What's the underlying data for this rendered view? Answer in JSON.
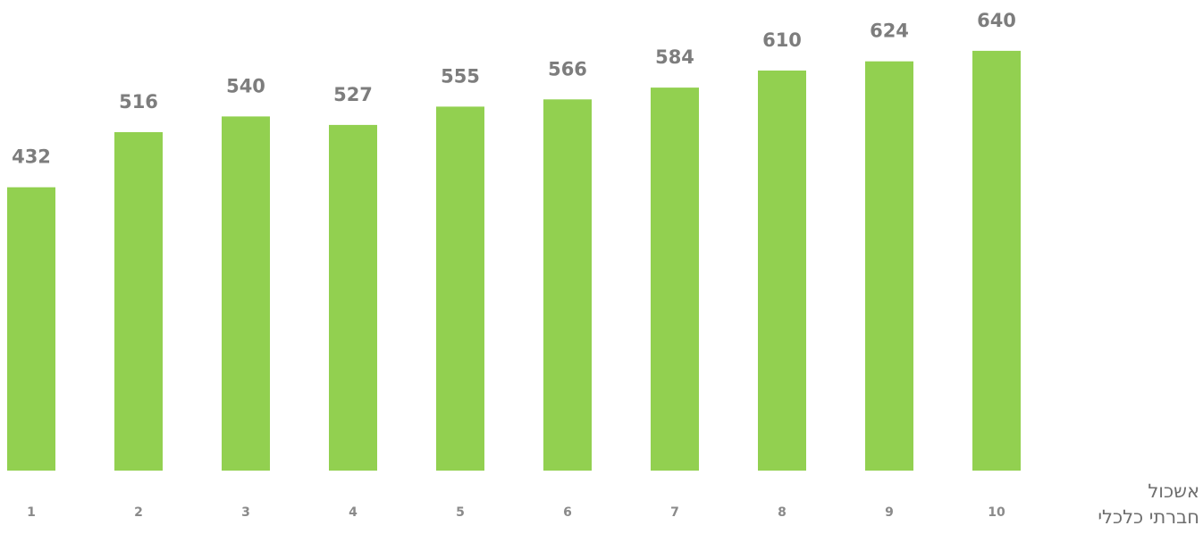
{
  "chart_data": {
    "type": "bar",
    "categories": [
      "1",
      "2",
      "3",
      "4",
      "5",
      "6",
      "7",
      "8",
      "9",
      "10"
    ],
    "values": [
      432,
      516,
      540,
      527,
      555,
      566,
      584,
      610,
      624,
      640
    ],
    "xlabel_lines": [
      "אשכול",
      "חברתי כלכלי"
    ],
    "bar_color": "#92d050",
    "label_color": "#7d7d7d",
    "tick_color": "#8a8a8a",
    "grid": false,
    "legend": "none"
  }
}
